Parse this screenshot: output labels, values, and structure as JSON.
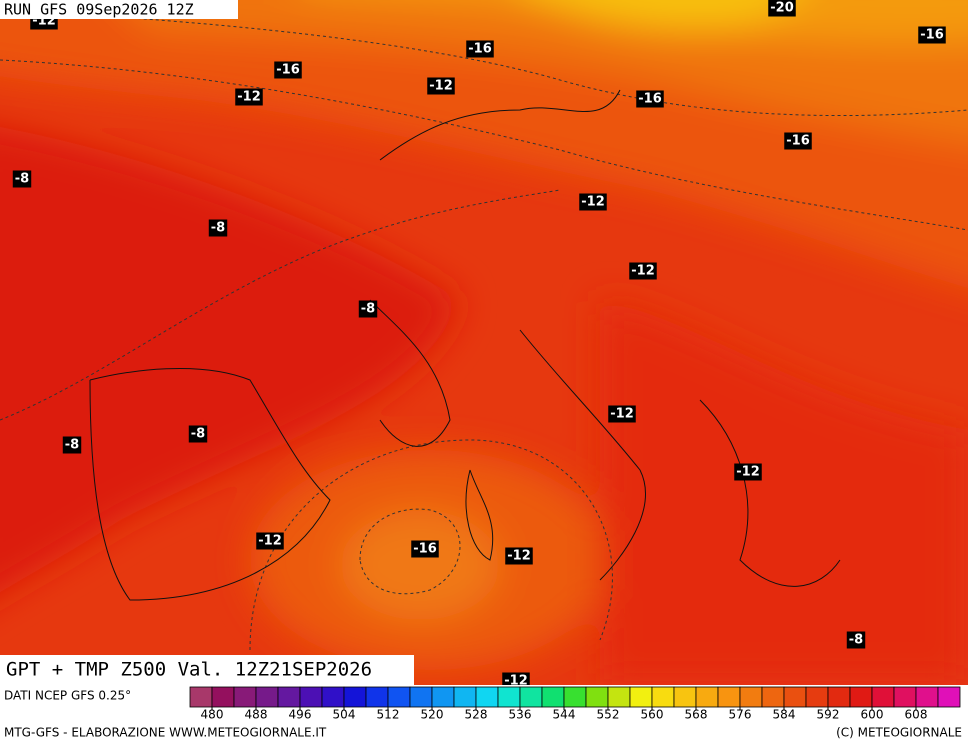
{
  "run_label": "RUN GFS 09Sep2026 12Z",
  "title": "GPT + TMP Z500 Val. 12Z21SEP2026",
  "source": "DATI NCEP GFS 0.25°",
  "credits_left": "MTG-GFS - ELABORAZIONE WWW.METEOGIORNALE.IT",
  "credits_right": "(C) METEOGIORNALE",
  "contour_labels": [
    "-12",
    "-20",
    "-16",
    "-16",
    "-16",
    "-12",
    "-12",
    "-16",
    "-16",
    "-8",
    "-12",
    "-8",
    "-12",
    "-8",
    "-12",
    "-8",
    "-8",
    "-12",
    "-12",
    "-16",
    "-12",
    "-8",
    "-12"
  ],
  "colorbar": {
    "range": [
      476,
      616
    ],
    "ticks": [
      480,
      488,
      496,
      504,
      512,
      520,
      528,
      536,
      544,
      552,
      560,
      568,
      576,
      584,
      592,
      600,
      608
    ],
    "colors": [
      "#a8386a",
      "#94105e",
      "#881a78",
      "#761a8a",
      "#6418a0",
      "#4c10b4",
      "#3010c8",
      "#1414d8",
      "#1034ea",
      "#1054f2",
      "#1074f2",
      "#1096f2",
      "#10b6f2",
      "#10d6f2",
      "#10e4d0",
      "#10e4a0",
      "#10e070",
      "#38e030",
      "#80e010",
      "#c4e410",
      "#f2f010",
      "#f8dc10",
      "#f8c410",
      "#f8aa10",
      "#f89410",
      "#f27c10",
      "#ee6610",
      "#ea5010",
      "#e63c10",
      "#e22a10",
      "#e01a14",
      "#e01038",
      "#e01060",
      "#e0108c",
      "#e010b8"
    ]
  }
}
